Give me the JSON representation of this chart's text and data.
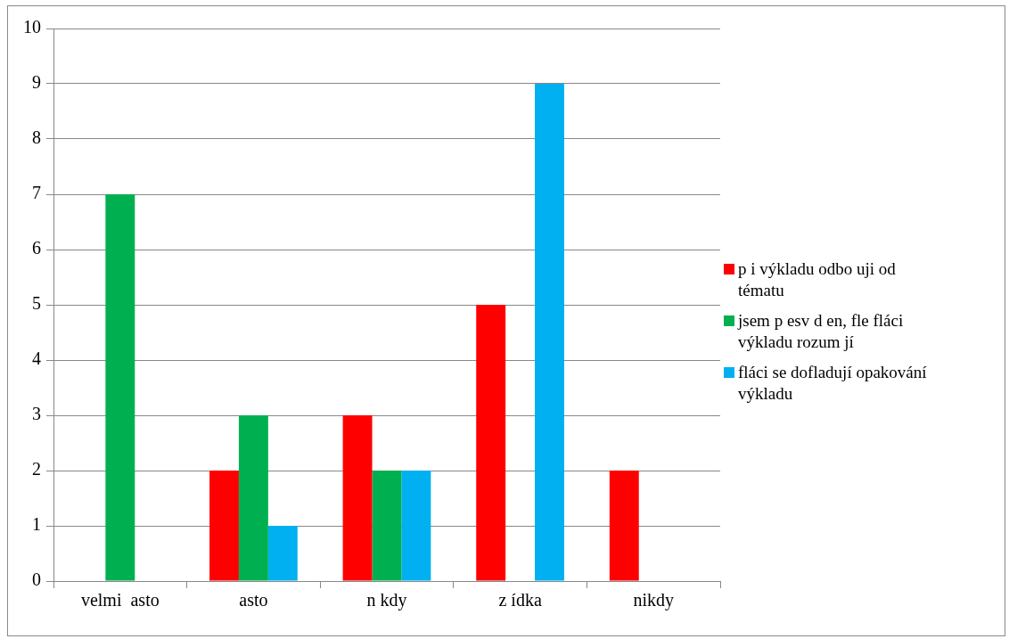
{
  "chart_data": {
    "type": "bar",
    "categories": [
      "velmi  asto",
      "asto",
      "n kdy",
      "z ídka",
      "nikdy"
    ],
    "series": [
      {
        "name": "p i výkladu odbo uji od tématu",
        "color": "#ff0000",
        "values": [
          0,
          2,
          3,
          5,
          2
        ]
      },
      {
        "name": "jsem p esv d en, fle fláci výkladu rozum jí",
        "color": "#00b050",
        "values": [
          7,
          3,
          2,
          0,
          0
        ]
      },
      {
        "name": "fláci se dofladují opakování výkladu",
        "color": "#00b0f0",
        "values": [
          0,
          1,
          2,
          9,
          0
        ]
      }
    ],
    "ylim": [
      0,
      10
    ],
    "yticks": [
      0,
      1,
      2,
      3,
      4,
      5,
      6,
      7,
      8,
      9,
      10
    ],
    "grid": "y",
    "legend": "right"
  }
}
